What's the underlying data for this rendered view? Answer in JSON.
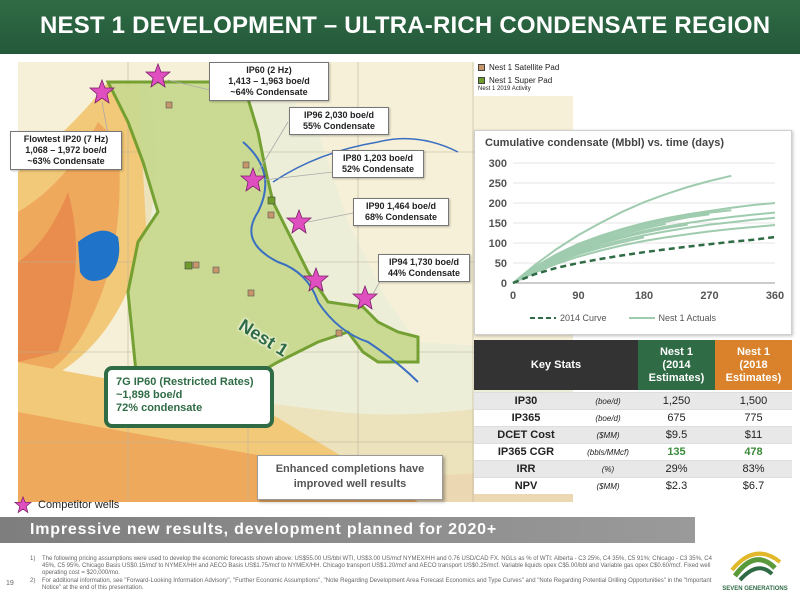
{
  "header": {
    "title": "NEST 1 DEVELOPMENT – ULTRA-RICH CONDENSATE REGION"
  },
  "map": {
    "legend": [
      {
        "label": "Nest 1 Satellite Pad",
        "color": "#c8956b"
      },
      {
        "label": "Nest 1 Super Pad",
        "color": "#6f9d2c"
      }
    ],
    "activity_label": "Nest 1 2019 Activity",
    "nest_label": "Nest 1",
    "callouts": [
      {
        "text": "IP60 (2 Hz)\n1,413 – 1,963 boe/d\n~64% Condensate"
      },
      {
        "text": "Flowtest IP20 (7 Hz)\n1,068 – 1,972 boe/d\n~63% Condensate"
      },
      {
        "text": "IP96 2,030  boe/d\n55% Condensate"
      },
      {
        "text": "IP80 1,203 boe/d\n52% Condensate"
      },
      {
        "text": "IP90 1,464 boe/d\n68% Condensate"
      },
      {
        "text": "IP94 1,730 boe/d\n44% Condensate"
      }
    ],
    "restricted": {
      "line1": "7G IP60 (Restricted Rates)",
      "line2": "~1,898 boe/d",
      "line3": "72% condensate"
    },
    "enhanced": {
      "line1": "Enhanced completions have",
      "line2": "improved well results"
    },
    "competitor_label": "Competitor wells",
    "star_color": "#e04fbf"
  },
  "chart_data": {
    "type": "line",
    "title": "Cumulative condensate (Mbbl) vs. time (days)",
    "xlabel": "",
    "ylabel": "",
    "xlim": [
      0,
      360
    ],
    "ylim": [
      0,
      300
    ],
    "xticks": [
      0,
      90,
      180,
      270,
      360
    ],
    "yticks": [
      0,
      50,
      100,
      150,
      200,
      250,
      300
    ],
    "series": [
      {
        "name": "2014 Curve",
        "style": "dashed",
        "color": "#2f6b45",
        "x": [
          0,
          30,
          60,
          90,
          120,
          150,
          180,
          210,
          240,
          270,
          300,
          330,
          360
        ],
        "y": [
          0,
          22,
          38,
          50,
          60,
          69,
          77,
          84,
          91,
          97,
          103,
          108,
          115
        ]
      },
      {
        "name": "Nest 1 Actuals",
        "style": "solid",
        "color": "#9fcbae",
        "lines": [
          {
            "x": [
              0,
              30,
              60,
              90,
              120,
              150,
              180,
              210,
              240,
              270,
              300
            ],
            "y": [
              0,
              45,
              85,
              120,
              150,
              178,
              202,
              222,
              240,
              255,
              268
            ]
          },
          {
            "x": [
              0,
              30,
              60,
              90,
              120,
              150,
              180,
              210,
              240,
              270,
              300,
              330,
              360
            ],
            "y": [
              0,
              40,
              72,
              98,
              118,
              135,
              150,
              162,
              172,
              180,
              188,
              195,
              200
            ]
          },
          {
            "x": [
              0,
              30,
              60,
              90,
              120,
              150,
              180,
              210,
              240,
              270,
              300
            ],
            "y": [
              0,
              38,
              70,
              95,
              115,
              132,
              146,
              158,
              168,
              176,
              182
            ]
          },
          {
            "x": [
              0,
              30,
              60,
              90,
              120,
              150,
              180,
              210,
              240,
              270,
              300,
              330,
              360
            ],
            "y": [
              0,
              34,
              62,
              84,
              102,
              117,
              130,
              141,
              150,
              158,
              165,
              171,
              176
            ]
          },
          {
            "x": [
              0,
              30,
              60,
              90,
              120,
              150,
              180,
              210,
              240,
              270
            ],
            "y": [
              0,
              36,
              66,
              90,
              110,
              127,
              141,
              153,
              164,
              172
            ]
          },
          {
            "x": [
              0,
              30,
              60,
              90,
              120,
              150,
              180,
              210,
              240,
              270,
              300,
              330,
              360
            ],
            "y": [
              0,
              30,
              55,
              76,
              93,
              107,
              119,
              129,
              138,
              146,
              152,
              158,
              163
            ]
          },
          {
            "x": [
              0,
              30,
              60,
              90,
              120,
              150,
              180,
              210,
              240
            ],
            "y": [
              0,
              32,
              58,
              80,
              98,
              113,
              126,
              137,
              146
            ]
          },
          {
            "x": [
              0,
              30,
              60,
              90,
              120,
              150,
              180,
              210,
              240,
              270,
              300,
              330,
              360
            ],
            "y": [
              0,
              26,
              48,
              66,
              81,
              94,
              105,
              114,
              122,
              129,
              135,
              140,
              145
            ]
          },
          {
            "x": [
              0,
              30,
              60,
              90,
              120,
              150,
              180,
              210
            ],
            "y": [
              0,
              34,
              62,
              86,
              105,
              122,
              136,
              148
            ]
          },
          {
            "x": [
              0,
              30,
              60,
              90,
              120,
              150,
              180
            ],
            "y": [
              0,
              28,
              52,
              72,
              88,
              102,
              114
            ]
          }
        ]
      }
    ]
  },
  "stats": {
    "headers": [
      "Key Stats",
      "Nest 1\n(2014\nEstimates)",
      "Nest 1\n(2018\nEstimates)"
    ],
    "header_colors": [
      "#333333",
      "#2f6b45",
      "#d9822b"
    ],
    "rows": [
      {
        "name": "IP30",
        "unit": "(boe/d)",
        "v2014": "1,250",
        "v2018": "1,500",
        "highlight": false
      },
      {
        "name": "IP365",
        "unit": "(boe/d)",
        "v2014": "675",
        "v2018": "775",
        "highlight": false
      },
      {
        "name": "DCET Cost",
        "unit": "($MM)",
        "v2014": "$9.5",
        "v2018": "$11",
        "highlight": false
      },
      {
        "name": "IP365 CGR",
        "unit": "(bbls/MMcf)",
        "v2014": "135",
        "v2018": "478",
        "highlight": true
      },
      {
        "name": "IRR",
        "unit": "(%)",
        "v2014": "29%",
        "v2018": "83%",
        "highlight": false
      },
      {
        "name": "NPV",
        "unit": "($MM)",
        "v2014": "$2.3",
        "v2018": "$6.7",
        "highlight": false
      }
    ]
  },
  "banner": {
    "text": "Impressive new results, development planned for 2020+"
  },
  "footnotes": [
    {
      "num": "1)",
      "text": "The following pricing assumptions were used to develop the economic forecasts shown above: US$55.00 US/bbl WTI, US$3.00 US/mcf NYMEX/HH and 0.76 USD/CAD FX. NGLs as % of WTI: Alberta - C3 25%, C4 35%, C5 91%; Chicago - C3 35%, C4 45%, C5 95%. Chicago Basis US$0.15/mcf to NYMEX/HH and AECO Basis US$1.75/mcf to NYMEX/HH. Chicago transport US$1.20/mcf and AECO transport US$0.25/mcf. Variable liquids opex C$5.00/bbl and Variable gas opex C$0.60/mcf. Fixed well operating cost = $20,000/mo."
    },
    {
      "num": "2)",
      "text": "For additional information, see \"Forward-Looking Information Advisory\", \"Further Economic Assumptions\", \"Note Regarding Development Area Forecast Economics and Type Curves\" and \"Note Regarding Potential Drilling Opportunities\" in the \"Important Notice\" at the end of this presentation."
    }
  ],
  "page_number": "19",
  "logo": {
    "text": "SEVEN GENERATIONS"
  }
}
